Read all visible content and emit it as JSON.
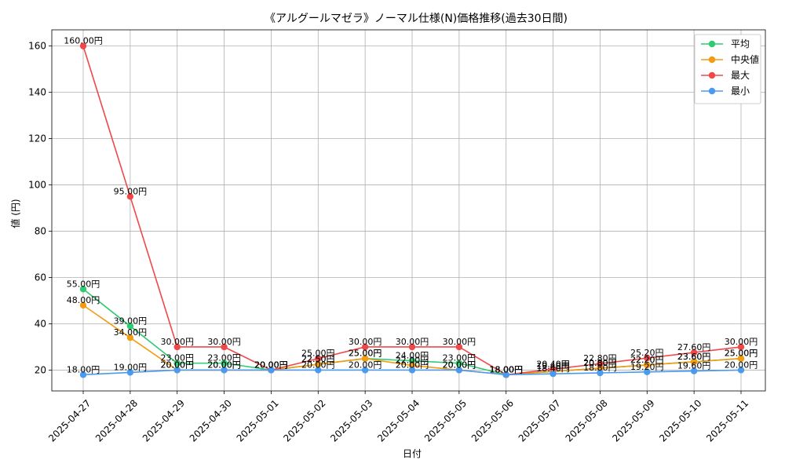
{
  "chart_data": {
    "type": "line",
    "title": "《アルグールマゼラ》ノーマル仕様(N)価格推移(過去30日間)",
    "xlabel": "日付",
    "ylabel": "値 (円)",
    "ylim": [
      11,
      167
    ],
    "yticks": [
      20,
      40,
      60,
      80,
      100,
      120,
      140,
      160
    ],
    "grid": true,
    "legend_position": "top-right",
    "value_suffix": "円",
    "categories": [
      "2025-04-27",
      "2025-04-28",
      "2025-04-29",
      "2025-04-30",
      "2025-05-01",
      "2025-05-02",
      "2025-05-03",
      "2025-05-04",
      "2025-05-05",
      "2025-05-06",
      "2025-05-07",
      "2025-05-08",
      "2025-05-09",
      "2025-05-10",
      "2025-05-11"
    ],
    "series": [
      {
        "name": "平均",
        "color": "#2ecc71",
        "values": [
          55.0,
          39.0,
          23.0,
          23.0,
          20.0,
          22.5,
          25.0,
          24.0,
          23.0,
          18.0,
          19.4,
          20.8,
          22.2,
          23.6,
          25.0
        ]
      },
      {
        "name": "中央値",
        "color": "#f39c12",
        "values": [
          48.0,
          34.0,
          20.0,
          20.0,
          20.0,
          22.5,
          25.0,
          22.0,
          20.0,
          18.0,
          19.4,
          20.8,
          22.2,
          23.6,
          25.0
        ]
      },
      {
        "name": "最大",
        "color": "#f04848",
        "values": [
          160.0,
          95.0,
          30.0,
          30.0,
          20.0,
          25.0,
          30.0,
          30.0,
          30.0,
          18.0,
          20.4,
          22.8,
          25.2,
          27.6,
          30.0
        ]
      },
      {
        "name": "最小",
        "color": "#4a9bf0",
        "values": [
          18.0,
          19.0,
          20.0,
          20.0,
          20.0,
          20.0,
          20.0,
          20.0,
          20.0,
          18.0,
          18.4,
          18.8,
          19.2,
          19.6,
          20.0
        ]
      }
    ]
  }
}
